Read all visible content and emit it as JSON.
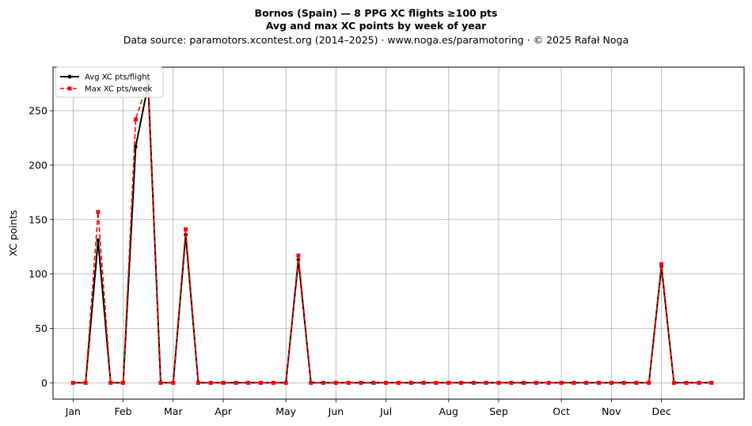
{
  "header": {
    "title_line1": "Bornos (Spain)  —  8 PPG XC flights ≥100 pts",
    "title_line2": "Avg and max XC points by week of year",
    "title_line3": "Data source: paramotors.xcontest.org (2014–2025)  ·  www.noga.es/paramotoring  ·  © 2025 Rafał Noga"
  },
  "chart_data": {
    "type": "line",
    "ylabel": "XC points",
    "xlabel": "",
    "xlim": [
      -1.6,
      53.6
    ],
    "ylim": [
      -15,
      290
    ],
    "grid": true,
    "legend_position": "top-left",
    "x_ticks": [
      {
        "x": 0,
        "label": "Jan"
      },
      {
        "x": 4,
        "label": "Feb"
      },
      {
        "x": 8,
        "label": "Mar"
      },
      {
        "x": 12,
        "label": "Apr"
      },
      {
        "x": 17,
        "label": "May"
      },
      {
        "x": 21,
        "label": "Jun"
      },
      {
        "x": 25,
        "label": "Jul"
      },
      {
        "x": 30,
        "label": "Aug"
      },
      {
        "x": 34,
        "label": "Sep"
      },
      {
        "x": 39,
        "label": "Oct"
      },
      {
        "x": 43,
        "label": "Nov"
      },
      {
        "x": 47,
        "label": "Dec"
      }
    ],
    "y_ticks": [
      0,
      50,
      100,
      150,
      200,
      250
    ],
    "x": [
      0,
      1,
      2,
      3,
      4,
      5,
      6,
      7,
      8,
      9,
      10,
      11,
      12,
      13,
      14,
      15,
      16,
      17,
      18,
      19,
      20,
      21,
      22,
      23,
      24,
      25,
      26,
      27,
      28,
      29,
      30,
      31,
      32,
      33,
      34,
      35,
      36,
      37,
      38,
      39,
      40,
      41,
      42,
      43,
      44,
      45,
      46,
      47,
      48,
      49,
      50,
      51
    ],
    "series": [
      {
        "name": "Avg XC pts/flight",
        "color": "#000000",
        "style": "solid",
        "marker": "circle",
        "values": [
          0,
          0,
          131,
          0,
          0,
          217,
          274,
          0,
          0,
          136,
          0,
          0,
          0,
          0,
          0,
          0,
          0,
          0,
          113,
          0,
          0,
          0,
          0,
          0,
          0,
          0,
          0,
          0,
          0,
          0,
          0,
          0,
          0,
          0,
          0,
          0,
          0,
          0,
          0,
          0,
          0,
          0,
          0,
          0,
          0,
          0,
          0,
          107,
          0,
          0,
          0,
          0
        ]
      },
      {
        "name": "Max XC pts/week",
        "color": "#ff0000",
        "style": "dashed",
        "marker": "square",
        "values": [
          0,
          0,
          157,
          0,
          0,
          242,
          278,
          0,
          0,
          141,
          0,
          0,
          0,
          0,
          0,
          0,
          0,
          0,
          117,
          0,
          0,
          0,
          0,
          0,
          0,
          0,
          0,
          0,
          0,
          0,
          0,
          0,
          0,
          0,
          0,
          0,
          0,
          0,
          0,
          0,
          0,
          0,
          0,
          0,
          0,
          0,
          0,
          109,
          0,
          0,
          0,
          0
        ]
      }
    ]
  }
}
